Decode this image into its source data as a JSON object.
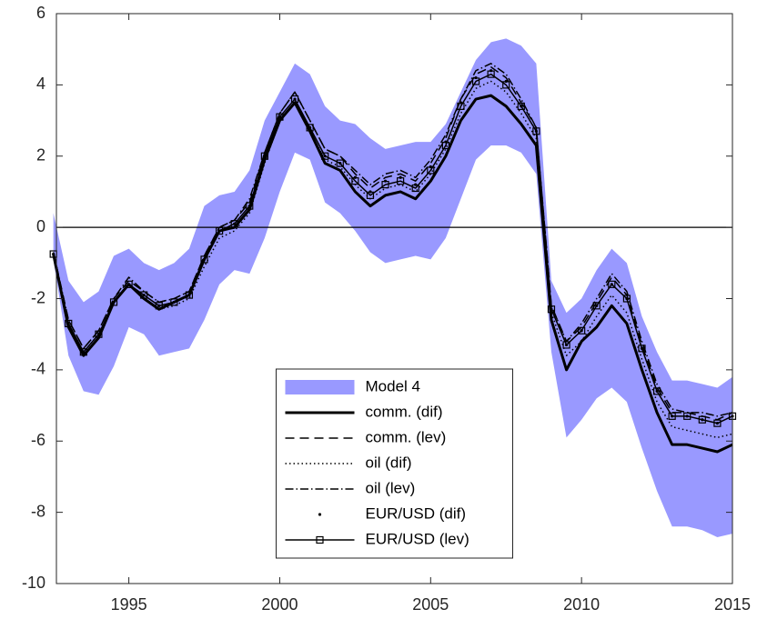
{
  "chart_data": {
    "type": "line",
    "x": [
      1992.5,
      1993,
      1993.5,
      1994,
      1994.5,
      1995,
      1995.5,
      1996,
      1996.5,
      1997,
      1997.5,
      1998,
      1998.5,
      1999,
      1999.5,
      2000,
      2000.5,
      2001,
      2001.5,
      2002,
      2002.5,
      2003,
      2003.5,
      2004,
      2004.5,
      2005,
      2005.5,
      2006,
      2006.5,
      2007,
      2007.5,
      2008,
      2008.5,
      2009,
      2009.5,
      2010,
      2010.5,
      2011,
      2011.5,
      2012,
      2012.5,
      2013,
      2013.5,
      2014,
      2014.5,
      2015
    ],
    "xlim": [
      1992.6,
      2015
    ],
    "xticks": [
      1995,
      2000,
      2005,
      2010,
      2015
    ],
    "ylim": [
      -10,
      6
    ],
    "yticks": [
      -10,
      -8,
      -6,
      -4,
      -2,
      0,
      2,
      4,
      6
    ],
    "hline": 0,
    "legend": "lower center",
    "series": [
      {
        "name": "Model 4",
        "kind": "band",
        "color": "#9999ff",
        "upper": [
          0.4,
          -1.5,
          -2.1,
          -1.8,
          -0.8,
          -0.6,
          -1.0,
          -1.2,
          -1.0,
          -0.6,
          0.6,
          0.9,
          1.0,
          1.6,
          3.0,
          3.8,
          4.6,
          4.3,
          3.4,
          3.0,
          2.9,
          2.5,
          2.2,
          2.3,
          2.4,
          2.4,
          2.9,
          3.8,
          4.7,
          5.2,
          5.3,
          5.1,
          4.6,
          -1.5,
          -2.4,
          -2.0,
          -1.2,
          -0.6,
          -1.0,
          -2.5,
          -3.5,
          -4.3,
          -4.3,
          -4.4,
          -4.5,
          -4.2
        ],
        "lower": [
          -0.9,
          -3.6,
          -4.6,
          -4.7,
          -3.9,
          -2.8,
          -3.0,
          -3.6,
          -3.5,
          -3.4,
          -2.6,
          -1.6,
          -1.2,
          -1.3,
          -0.3,
          1.0,
          2.1,
          1.9,
          0.7,
          0.4,
          -0.1,
          -0.7,
          -1.0,
          -0.9,
          -0.8,
          -0.9,
          -0.3,
          0.8,
          1.9,
          2.3,
          2.3,
          2.1,
          1.5,
          -3.5,
          -5.9,
          -5.4,
          -4.8,
          -4.5,
          -4.9,
          -6.2,
          -7.4,
          -8.4,
          -8.4,
          -8.5,
          -8.7,
          -8.6
        ]
      },
      {
        "name": "comm. (dif)",
        "color": "#000000",
        "width": 3,
        "dash": "none",
        "values": [
          -0.75,
          -2.8,
          -3.6,
          -3.1,
          -2.1,
          -1.6,
          -2.0,
          -2.3,
          -2.1,
          -1.9,
          -0.9,
          -0.1,
          0.0,
          0.5,
          1.9,
          3.0,
          3.5,
          2.7,
          1.8,
          1.6,
          1.0,
          0.6,
          0.9,
          1.0,
          0.8,
          1.3,
          2.0,
          3.0,
          3.6,
          3.7,
          3.4,
          2.9,
          2.3,
          -2.6,
          -4.0,
          -3.2,
          -2.8,
          -2.2,
          -2.7,
          -4.0,
          -5.2,
          -6.1,
          -6.1,
          -6.2,
          -6.3,
          -6.1
        ]
      },
      {
        "name": "comm. (lev)",
        "color": "#000000",
        "width": 1.5,
        "dash": "10,6",
        "values": [
          -0.7,
          -2.6,
          -3.4,
          -2.9,
          -2.0,
          -1.5,
          -1.8,
          -2.1,
          -2.0,
          -1.8,
          -0.8,
          0.0,
          0.2,
          0.7,
          2.1,
          3.2,
          3.8,
          3.0,
          2.2,
          2.0,
          1.5,
          1.1,
          1.4,
          1.5,
          1.3,
          1.8,
          2.5,
          3.6,
          4.3,
          4.5,
          4.2,
          3.5,
          2.8,
          -2.2,
          -3.2,
          -2.8,
          -2.1,
          -1.4,
          -1.9,
          -3.3,
          -4.5,
          -5.2,
          -5.2,
          -5.3,
          -5.4,
          -5.2
        ]
      },
      {
        "name": "oil (dif)",
        "color": "#000000",
        "width": 1.5,
        "dash": "1.5,3",
        "values": [
          -0.75,
          -2.7,
          -3.5,
          -3.0,
          -2.1,
          -1.6,
          -2.0,
          -2.3,
          -2.2,
          -2.0,
          -1.1,
          -0.3,
          -0.1,
          0.4,
          1.8,
          3.0,
          3.5,
          2.7,
          1.9,
          1.7,
          1.2,
          0.8,
          1.1,
          1.2,
          1.0,
          1.5,
          2.2,
          3.2,
          3.9,
          4.1,
          3.8,
          3.2,
          2.5,
          -2.4,
          -3.6,
          -3.2,
          -2.5,
          -1.9,
          -2.4,
          -3.7,
          -4.9,
          -5.6,
          -5.7,
          -5.8,
          -5.9,
          -5.8
        ]
      },
      {
        "name": "oil (lev)",
        "color": "#000000",
        "width": 1.5,
        "dash": "9,3,1.5,3",
        "values": [
          -0.7,
          -2.6,
          -3.4,
          -2.9,
          -2.0,
          -1.4,
          -1.8,
          -2.1,
          -2.0,
          -1.8,
          -0.8,
          0.0,
          0.2,
          0.8,
          2.1,
          3.2,
          3.8,
          3.0,
          2.2,
          2.0,
          1.6,
          1.2,
          1.5,
          1.6,
          1.4,
          1.9,
          2.6,
          3.6,
          4.4,
          4.6,
          4.3,
          3.6,
          2.8,
          -2.2,
          -3.2,
          -2.7,
          -2.0,
          -1.3,
          -1.8,
          -3.2,
          -4.4,
          -5.1,
          -5.2,
          -5.2,
          -5.3,
          -5.2
        ]
      },
      {
        "name": "EUR/USD (dif)",
        "color": "#000000",
        "width": 0,
        "dash": "none",
        "marker": "dot",
        "values": [
          -0.75,
          -2.7,
          -3.5,
          -3.0,
          -2.1,
          -1.6,
          -1.9,
          -2.2,
          -2.1,
          -1.9,
          -0.9,
          -0.1,
          0.1,
          0.6,
          2.0,
          3.1,
          3.6,
          2.8,
          2.0,
          1.8,
          1.4,
          1.0,
          1.3,
          1.4,
          1.2,
          1.7,
          2.4,
          3.5,
          4.2,
          4.4,
          4.1,
          3.4,
          2.7,
          -2.3,
          -3.3,
          -2.9,
          -2.2,
          -1.6,
          -2.0,
          -3.4,
          -4.6,
          -5.3,
          -5.3,
          -5.4,
          -5.5,
          -5.3
        ]
      },
      {
        "name": "EUR/USD (lev)",
        "color": "#000000",
        "width": 1.5,
        "dash": "none",
        "marker": "square",
        "values": [
          -0.75,
          -2.7,
          -3.5,
          -3.0,
          -2.1,
          -1.6,
          -1.9,
          -2.2,
          -2.1,
          -1.9,
          -0.9,
          -0.1,
          0.1,
          0.6,
          2.0,
          3.1,
          3.6,
          2.8,
          2.0,
          1.8,
          1.3,
          0.9,
          1.2,
          1.3,
          1.1,
          1.6,
          2.3,
          3.4,
          4.1,
          4.3,
          4.0,
          3.4,
          2.7,
          -2.3,
          -3.3,
          -2.9,
          -2.2,
          -1.6,
          -2.0,
          -3.4,
          -4.6,
          -5.3,
          -5.3,
          -5.4,
          -5.5,
          -5.3
        ]
      }
    ]
  }
}
